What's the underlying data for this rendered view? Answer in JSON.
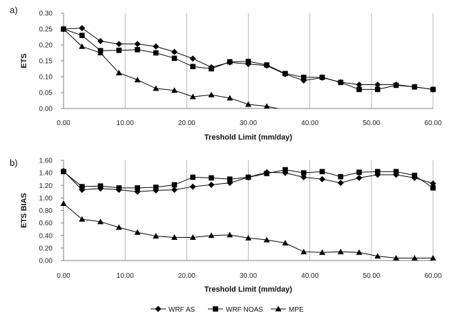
{
  "legend": {
    "entries": [
      {
        "name": "WRF AS",
        "marker": "diamond"
      },
      {
        "name": "WRF NOAS",
        "marker": "square"
      },
      {
        "name": "MPE",
        "marker": "triangle"
      }
    ],
    "placement": "bottom"
  },
  "chart_data": [
    {
      "type": "line",
      "panel_label": "a)",
      "xlabel": "Treshold Limit (mm/day)",
      "ylabel": "ETS",
      "xlim": [
        0,
        60
      ],
      "ylim": [
        0,
        0.3
      ],
      "xticks": [
        "0.00",
        "10.00",
        "20.00",
        "30.00",
        "40.00",
        "50.00",
        "60.00"
      ],
      "xtick_values": [
        0,
        10,
        20,
        30,
        40,
        50,
        60
      ],
      "yticks": [
        "0.00",
        "0.05",
        "0.10",
        "0.15",
        "0.20",
        "0.25",
        "0.30"
      ],
      "ytick_values": [
        0,
        0.05,
        0.1,
        0.15,
        0.2,
        0.25,
        0.3
      ],
      "grid": "vertical",
      "x": [
        0,
        3,
        6,
        9,
        12,
        15,
        18,
        21,
        24,
        27,
        30,
        33,
        36,
        39,
        42,
        45,
        48,
        51,
        54,
        57,
        60
      ],
      "series": [
        {
          "name": "WRF AS",
          "marker": "diamond",
          "values": [
            0.25,
            0.253,
            0.212,
            0.203,
            0.203,
            0.195,
            0.178,
            0.157,
            0.13,
            0.145,
            0.14,
            0.135,
            0.108,
            0.088,
            0.097,
            0.083,
            0.075,
            0.075,
            0.075,
            0.068,
            0.06
          ]
        },
        {
          "name": "WRF NOAS",
          "marker": "square",
          "values": [
            0.25,
            0.23,
            0.182,
            0.183,
            0.185,
            0.175,
            0.158,
            0.132,
            0.125,
            0.147,
            0.148,
            0.137,
            0.11,
            0.098,
            0.098,
            0.082,
            0.06,
            0.06,
            0.073,
            0.068,
            0.06
          ]
        },
        {
          "name": "MPE",
          "marker": "triangle",
          "values": [
            0.25,
            0.195,
            0.175,
            0.112,
            0.09,
            0.063,
            0.057,
            0.037,
            0.043,
            0.033,
            0.013,
            0.007,
            -0.005,
            -0.005,
            -0.005,
            -0.005,
            -0.005,
            -0.004,
            -0.003,
            -0.002,
            -0.001
          ],
          "markers_visible_until_index": 11
        }
      ]
    },
    {
      "type": "line",
      "panel_label": "b)",
      "xlabel": "Treshold Limit (mm/day)",
      "ylabel": "ETS BIAS",
      "xlim": [
        0,
        60
      ],
      "ylim": [
        0,
        1.6
      ],
      "xticks": [
        "0.00",
        "10.00",
        "20.00",
        "30.00",
        "40.00",
        "50.00",
        "60.00"
      ],
      "xtick_values": [
        0,
        10,
        20,
        30,
        40,
        50,
        60
      ],
      "yticks": [
        "0.00",
        "0.20",
        "0.40",
        "0.60",
        "0.80",
        "1.00",
        "1.20",
        "1.40",
        "1.60"
      ],
      "ytick_values": [
        0,
        0.2,
        0.4,
        0.6,
        0.8,
        1.0,
        1.2,
        1.4,
        1.6
      ],
      "grid": "vertical",
      "x": [
        0,
        3,
        6,
        9,
        12,
        15,
        18,
        21,
        24,
        27,
        30,
        33,
        36,
        39,
        42,
        45,
        48,
        51,
        54,
        57,
        60
      ],
      "series": [
        {
          "name": "WRF AS",
          "marker": "diamond",
          "values": [
            1.43,
            1.13,
            1.15,
            1.13,
            1.1,
            1.12,
            1.13,
            1.18,
            1.21,
            1.24,
            1.33,
            1.41,
            1.4,
            1.33,
            1.3,
            1.24,
            1.32,
            1.37,
            1.37,
            1.32,
            1.23
          ]
        },
        {
          "name": "WRF NOAS",
          "marker": "square",
          "values": [
            1.42,
            1.18,
            1.19,
            1.16,
            1.16,
            1.17,
            1.21,
            1.33,
            1.32,
            1.3,
            1.33,
            1.39,
            1.45,
            1.4,
            1.42,
            1.34,
            1.41,
            1.42,
            1.42,
            1.36,
            1.16
          ]
        },
        {
          "name": "MPE",
          "marker": "triangle",
          "values": [
            0.91,
            0.66,
            0.62,
            0.53,
            0.45,
            0.39,
            0.37,
            0.37,
            0.4,
            0.41,
            0.36,
            0.33,
            0.28,
            0.14,
            0.13,
            0.14,
            0.13,
            0.07,
            0.04,
            0.04,
            0.04
          ]
        }
      ]
    }
  ]
}
